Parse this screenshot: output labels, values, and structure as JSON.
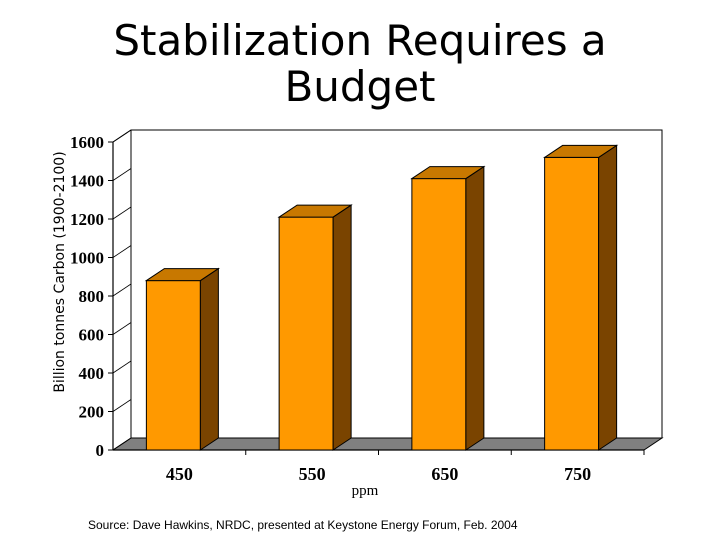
{
  "slide": {
    "title": "Stabilization Requires a Budget",
    "source": "Source: Dave Hawkins, NRDC, presented at Keystone Energy Forum, Feb. 2004"
  },
  "colors": {
    "bar_front": "#ff9900",
    "bar_side": "#7a4400",
    "bar_top": "#c87800",
    "floor": "#808080"
  },
  "chart_data": {
    "type": "bar",
    "title": "Stabilization Requires a Budget",
    "xlabel": "ppm",
    "ylabel": "Billion tonnes Carbon (1900-2100)",
    "categories": [
      "450",
      "550",
      "650",
      "750"
    ],
    "values": [
      880,
      1210,
      1410,
      1520
    ],
    "ylim": [
      0,
      1600
    ],
    "yticks": [
      "0",
      "200",
      "400",
      "600",
      "800",
      "1000",
      "1200",
      "1400",
      "1600"
    ],
    "grid": false,
    "legend": "none"
  }
}
